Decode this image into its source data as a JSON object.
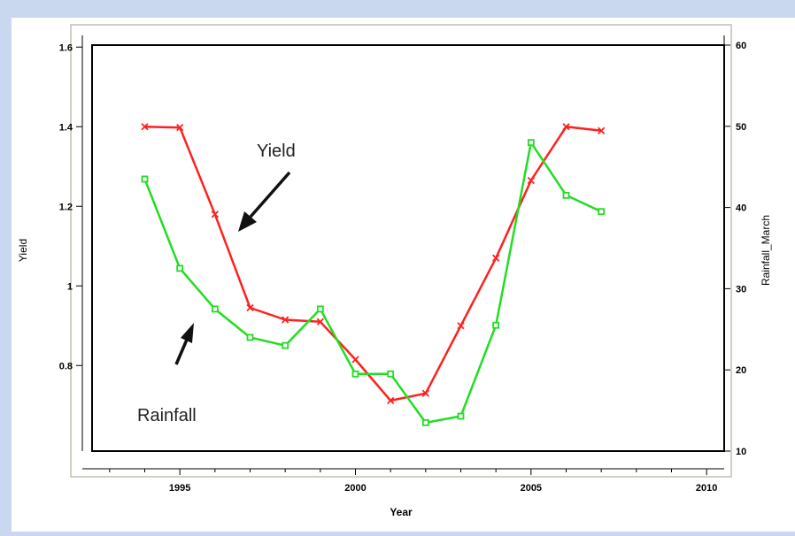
{
  "chart_data": {
    "type": "line",
    "xlabel": "Year",
    "ylabel_left": "Yield",
    "ylabel_right": "Rainfall_March",
    "xlim": [
      1992.5,
      2010.5
    ],
    "ylim_left": [
      0.585,
      1.605
    ],
    "ylim_right": [
      10,
      60
    ],
    "x_ticks": [
      1995,
      2000,
      2005,
      2010
    ],
    "x_minor_ticks": [
      1993,
      1994,
      1996,
      1997,
      1998,
      1999,
      2001,
      2002,
      2003,
      2004,
      2006,
      2007,
      2008,
      2009
    ],
    "y_left_ticks": [
      0.8,
      1,
      1.2,
      1.4,
      1.6
    ],
    "y_left_tick_labels": [
      "0.8",
      "1",
      "1.2",
      "1.4",
      "1.6"
    ],
    "y_right_ticks": [
      10,
      20,
      30,
      40,
      50,
      60
    ],
    "grid": false,
    "series": [
      {
        "name": "Yield",
        "axis": "left",
        "color": "#ff2020",
        "marker": "x",
        "x": [
          1994,
          1995,
          1996,
          1997,
          1998,
          1999,
          2000,
          2001,
          2002,
          2003,
          2004,
          2005,
          2006,
          2007
        ],
        "y": [
          1.4,
          1.398,
          1.18,
          0.945,
          0.915,
          0.91,
          0.815,
          0.712,
          0.73,
          0.9,
          1.07,
          1.265,
          1.4,
          1.39
        ]
      },
      {
        "name": "Rainfall",
        "axis": "right",
        "color": "#22dd22",
        "marker": "square",
        "x": [
          1994,
          1995,
          1996,
          1997,
          1998,
          1999,
          2000,
          2001,
          2002,
          2003,
          2004,
          2005,
          2006,
          2007
        ],
        "y": [
          43.5,
          32.5,
          27.5,
          24.0,
          23.0,
          27.5,
          19.5,
          19.5,
          13.5,
          14.3,
          25.5,
          48.0,
          41.5,
          39.5
        ]
      }
    ],
    "annotations": [
      {
        "text": "Yield",
        "arrow_direction": "down-left"
      },
      {
        "text": "Rainfall",
        "arrow_direction": "up-right"
      }
    ]
  }
}
